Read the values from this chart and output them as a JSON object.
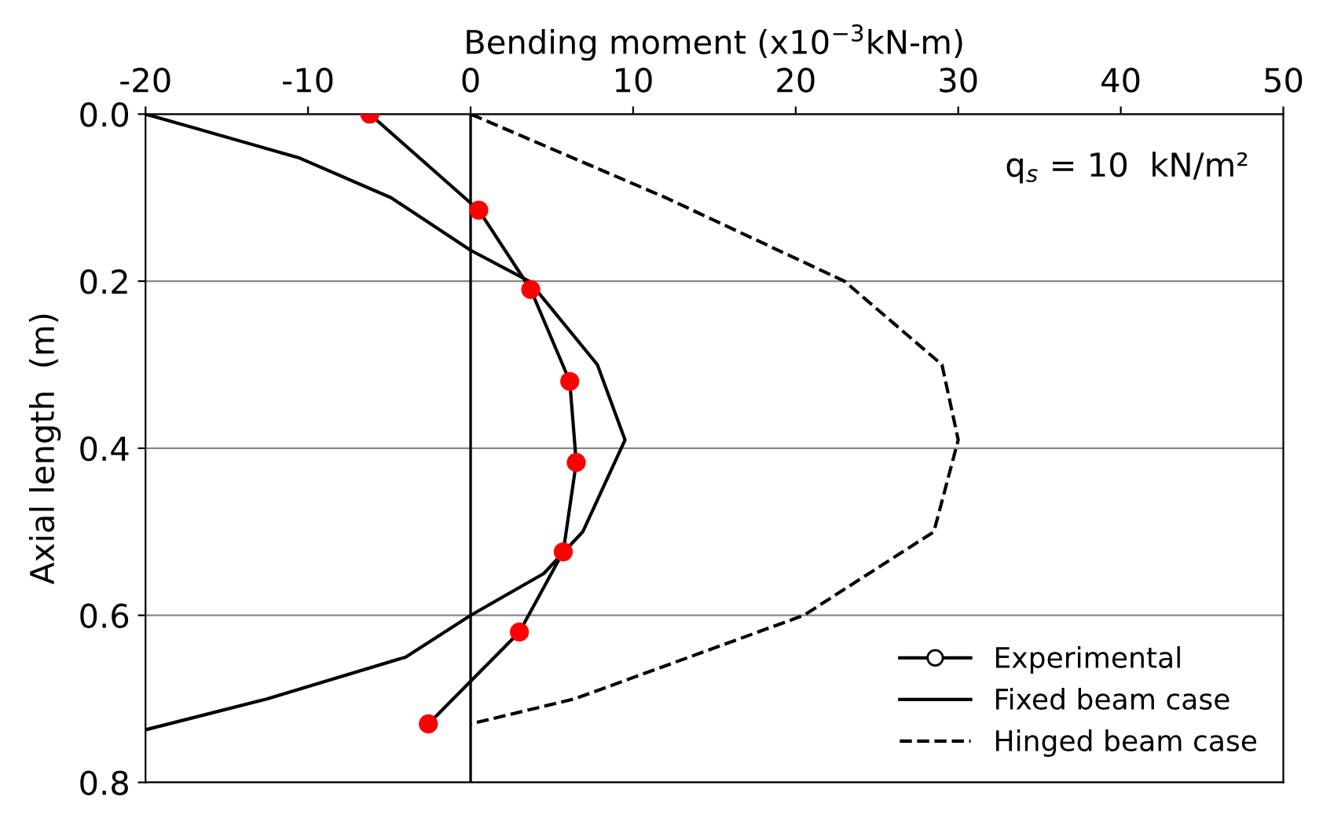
{
  "chart_data": {
    "type": "line",
    "xlabel": "Bending moment (x10$^{−3}$kN-m)",
    "ylabel": "Axial length  (m)",
    "annotations": [
      "q$_{s}$ = 10  kN/m²"
    ],
    "xlim": [
      -20,
      50
    ],
    "xticks": [
      -20,
      -10,
      0,
      10,
      20,
      30,
      40,
      50
    ],
    "ylim": [
      0.8,
      0.0
    ],
    "yticks": [
      {
        "value": 0.0,
        "label": "0.0"
      },
      {
        "value": 0.2,
        "label": "0.2"
      },
      {
        "value": 0.4,
        "label": "0.4"
      },
      {
        "value": 0.6,
        "label": "0.6"
      },
      {
        "value": 0.8,
        "label": "0.8"
      }
    ],
    "grid": "y",
    "legend": "bottom right",
    "ref_lines": [
      {
        "axis": "x",
        "value": 0,
        "color": "#000000",
        "line_style": "solid"
      }
    ],
    "series": [
      {
        "name": "Experimental",
        "color": "#000000",
        "marker": "circle",
        "line_style": "solid",
        "colors": [
          "#ff0000",
          "#ff0000",
          "#ff0000",
          "#ff0000",
          "#ff0000",
          "#ff0000",
          "#ff0000",
          "#ff0000"
        ],
        "x": [
          -6.2,
          0.5,
          3.7,
          6.1,
          6.5,
          5.7,
          3.0,
          -2.6
        ],
        "values": [
          0.0,
          0.115,
          0.21,
          0.32,
          0.417,
          0.524,
          0.62,
          0.73
        ]
      },
      {
        "name": "Fixed beam case",
        "color": "#000000",
        "marker": "none",
        "line_style": "solid",
        "x": [
          -20,
          -10.6,
          -4.9,
          0,
          3.6,
          7.8,
          9.5,
          6.9,
          4.5,
          0,
          -4,
          -12.5,
          -20
        ],
        "values": [
          0.0,
          0.052,
          0.1,
          0.163,
          0.2,
          0.3,
          0.39,
          0.5,
          0.55,
          0.6,
          0.65,
          0.7,
          0.737
        ]
      },
      {
        "name": "Hinged beam case",
        "color": "#000000",
        "marker": "none",
        "line_style": "dashed",
        "x": [
          0,
          12,
          23,
          29,
          30,
          28.5,
          20.5,
          6.4,
          0
        ],
        "values": [
          0.0,
          0.1,
          0.2,
          0.3,
          0.39,
          0.5,
          0.6,
          0.7,
          0.73
        ]
      }
    ]
  }
}
